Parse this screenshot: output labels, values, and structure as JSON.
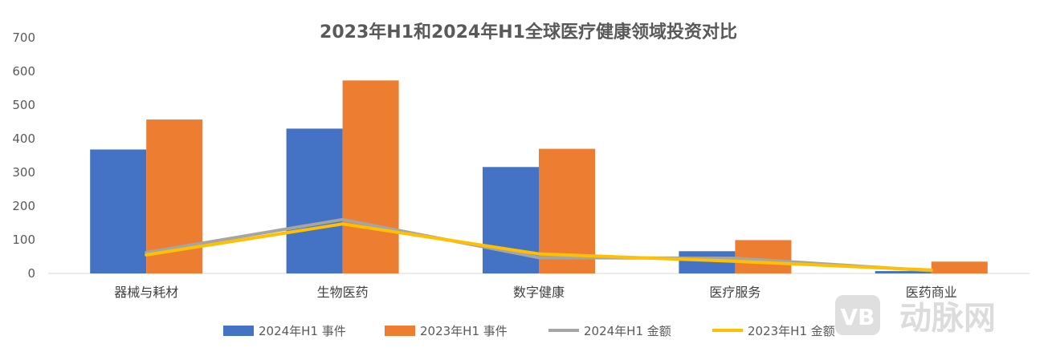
{
  "chart_data": {
    "type": "bar",
    "title": "2023年H1和2024年H1全球医疗健康领域投资对比",
    "categories": [
      "器械与耗材",
      "生物医药",
      "数字健康",
      "医疗服务",
      "医药商业"
    ],
    "ylim": [
      0,
      700
    ],
    "yticks": [
      0,
      100,
      200,
      300,
      400,
      500,
      600,
      700
    ],
    "xlabel": "",
    "ylabel": "",
    "grid": false,
    "legend_position": "bottom",
    "series": [
      {
        "name": "2024年H1 事件",
        "kind": "bar",
        "color": "#4472C4",
        "values": [
          368,
          430,
          316,
          66,
          7
        ]
      },
      {
        "name": "2023年H1 事件",
        "kind": "bar",
        "color": "#ED7D31",
        "values": [
          457,
          573,
          370,
          99,
          35
        ]
      },
      {
        "name": "2024年H1 金额",
        "kind": "line",
        "color": "#A5A5A5",
        "values": [
          62,
          160,
          47,
          45,
          8
        ]
      },
      {
        "name": "2023年H1 金额",
        "kind": "line",
        "color": "#FFC000",
        "values": [
          55,
          147,
          58,
          36,
          10
        ]
      }
    ]
  },
  "watermark": {
    "logo_text": "VB",
    "text": "动脉网"
  }
}
